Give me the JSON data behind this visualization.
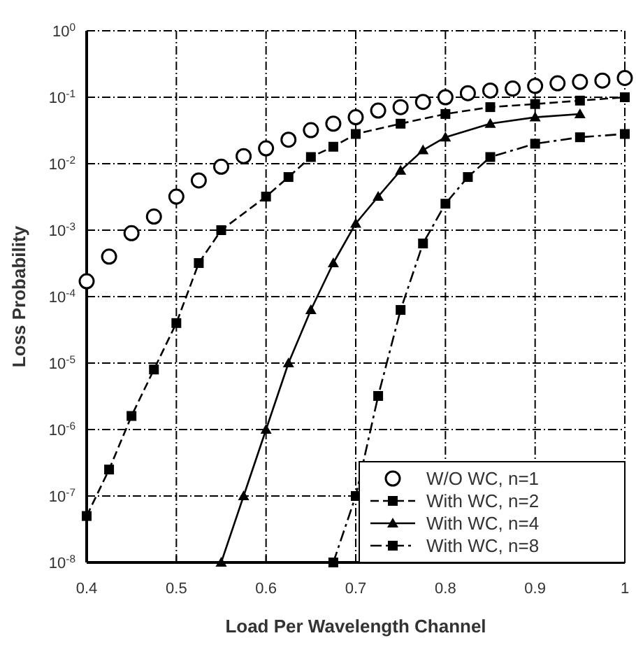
{
  "chart_data": {
    "type": "line",
    "xlabel": "Load Per Wavelength Channel",
    "ylabel": "Loss Probability",
    "log": "y",
    "xlim": [
      0.4,
      1
    ],
    "xticks": [
      0.4,
      0.5,
      0.6,
      0.7,
      0.8,
      0.9,
      1
    ],
    "ylim": [
      1e-08,
      1
    ],
    "yticks": [
      {
        "value": 1e-08,
        "label": "10$^{-8}$"
      },
      {
        "value": 1e-07,
        "label": "10$^{-7}$"
      },
      {
        "value": 1e-06,
        "label": "10$^{-6}$"
      },
      {
        "value": 1e-05,
        "label": "10$^{-5}$"
      },
      {
        "value": 0.0001,
        "label": "10$^{-4}$"
      },
      {
        "value": 0.001,
        "label": "10$^{-3}$"
      },
      {
        "value": 0.01,
        "label": "10$^{-2}$"
      },
      {
        "value": 0.1,
        "label": "10$^{-1}$"
      },
      {
        "value": 1,
        "label": "10$^{0}$"
      }
    ],
    "grid": true,
    "legend": "bottom right",
    "series": [
      {
        "name": "W/O WC, n=1",
        "color": "#000000",
        "type": "scatter",
        "marker": "circle",
        "x": [
          0.4,
          0.425,
          0.45,
          0.475,
          0.5,
          0.525,
          0.55,
          0.575,
          0.6,
          0.625,
          0.65,
          0.675,
          0.7,
          0.725,
          0.75,
          0.775,
          0.8,
          0.825,
          0.85,
          0.875,
          0.9,
          0.925,
          0.95,
          0.975,
          1
        ],
        "values": [
          0.00017,
          0.0004,
          0.0009,
          0.0016,
          0.0032,
          0.0056,
          0.009,
          0.013,
          0.017,
          0.023,
          0.032,
          0.04,
          0.05,
          0.063,
          0.071,
          0.085,
          0.1,
          0.115,
          0.126,
          0.135,
          0.148,
          0.162,
          0.17,
          0.178,
          0.195
        ]
      },
      {
        "name": "With WC, n=2",
        "color": "#000000",
        "type": "line",
        "marker": "square",
        "line_style": "dashed",
        "x": [
          0.4,
          0.425,
          0.45,
          0.475,
          0.5,
          0.525,
          0.55,
          0.6,
          0.625,
          0.65,
          0.675,
          0.7,
          0.75,
          0.8,
          0.85,
          0.9,
          0.95,
          1
        ],
        "values": [
          5e-08,
          2.5e-07,
          1.6e-06,
          8e-06,
          4e-05,
          0.00032,
          0.001,
          0.0032,
          0.0063,
          0.0126,
          0.018,
          0.028,
          0.04,
          0.056,
          0.071,
          0.079,
          0.089,
          0.1
        ]
      },
      {
        "name": "With WC, n=4",
        "color": "#000000",
        "type": "line",
        "marker": "triangle",
        "line_style": "solid",
        "x": [
          0.55,
          0.575,
          0.6,
          0.625,
          0.65,
          0.675,
          0.7,
          0.725,
          0.75,
          0.775,
          0.8,
          0.85,
          0.9,
          0.95
        ],
        "values": [
          1e-08,
          1e-07,
          1e-06,
          1e-05,
          6.3e-05,
          0.00032,
          0.00126,
          0.0032,
          0.0079,
          0.016,
          0.025,
          0.04,
          0.05,
          0.056
        ]
      },
      {
        "name": "With WC, n=8",
        "color": "#000000",
        "type": "line",
        "marker": "square",
        "line_style": "dotted",
        "x": [
          0.675,
          0.7,
          0.725,
          0.75,
          0.775,
          0.8,
          0.825,
          0.85,
          0.9,
          0.95,
          1
        ],
        "values": [
          1e-08,
          1e-07,
          3.2e-06,
          6.3e-05,
          0.00063,
          0.0025,
          0.0063,
          0.0126,
          0.02,
          0.025,
          0.028
        ]
      }
    ]
  }
}
